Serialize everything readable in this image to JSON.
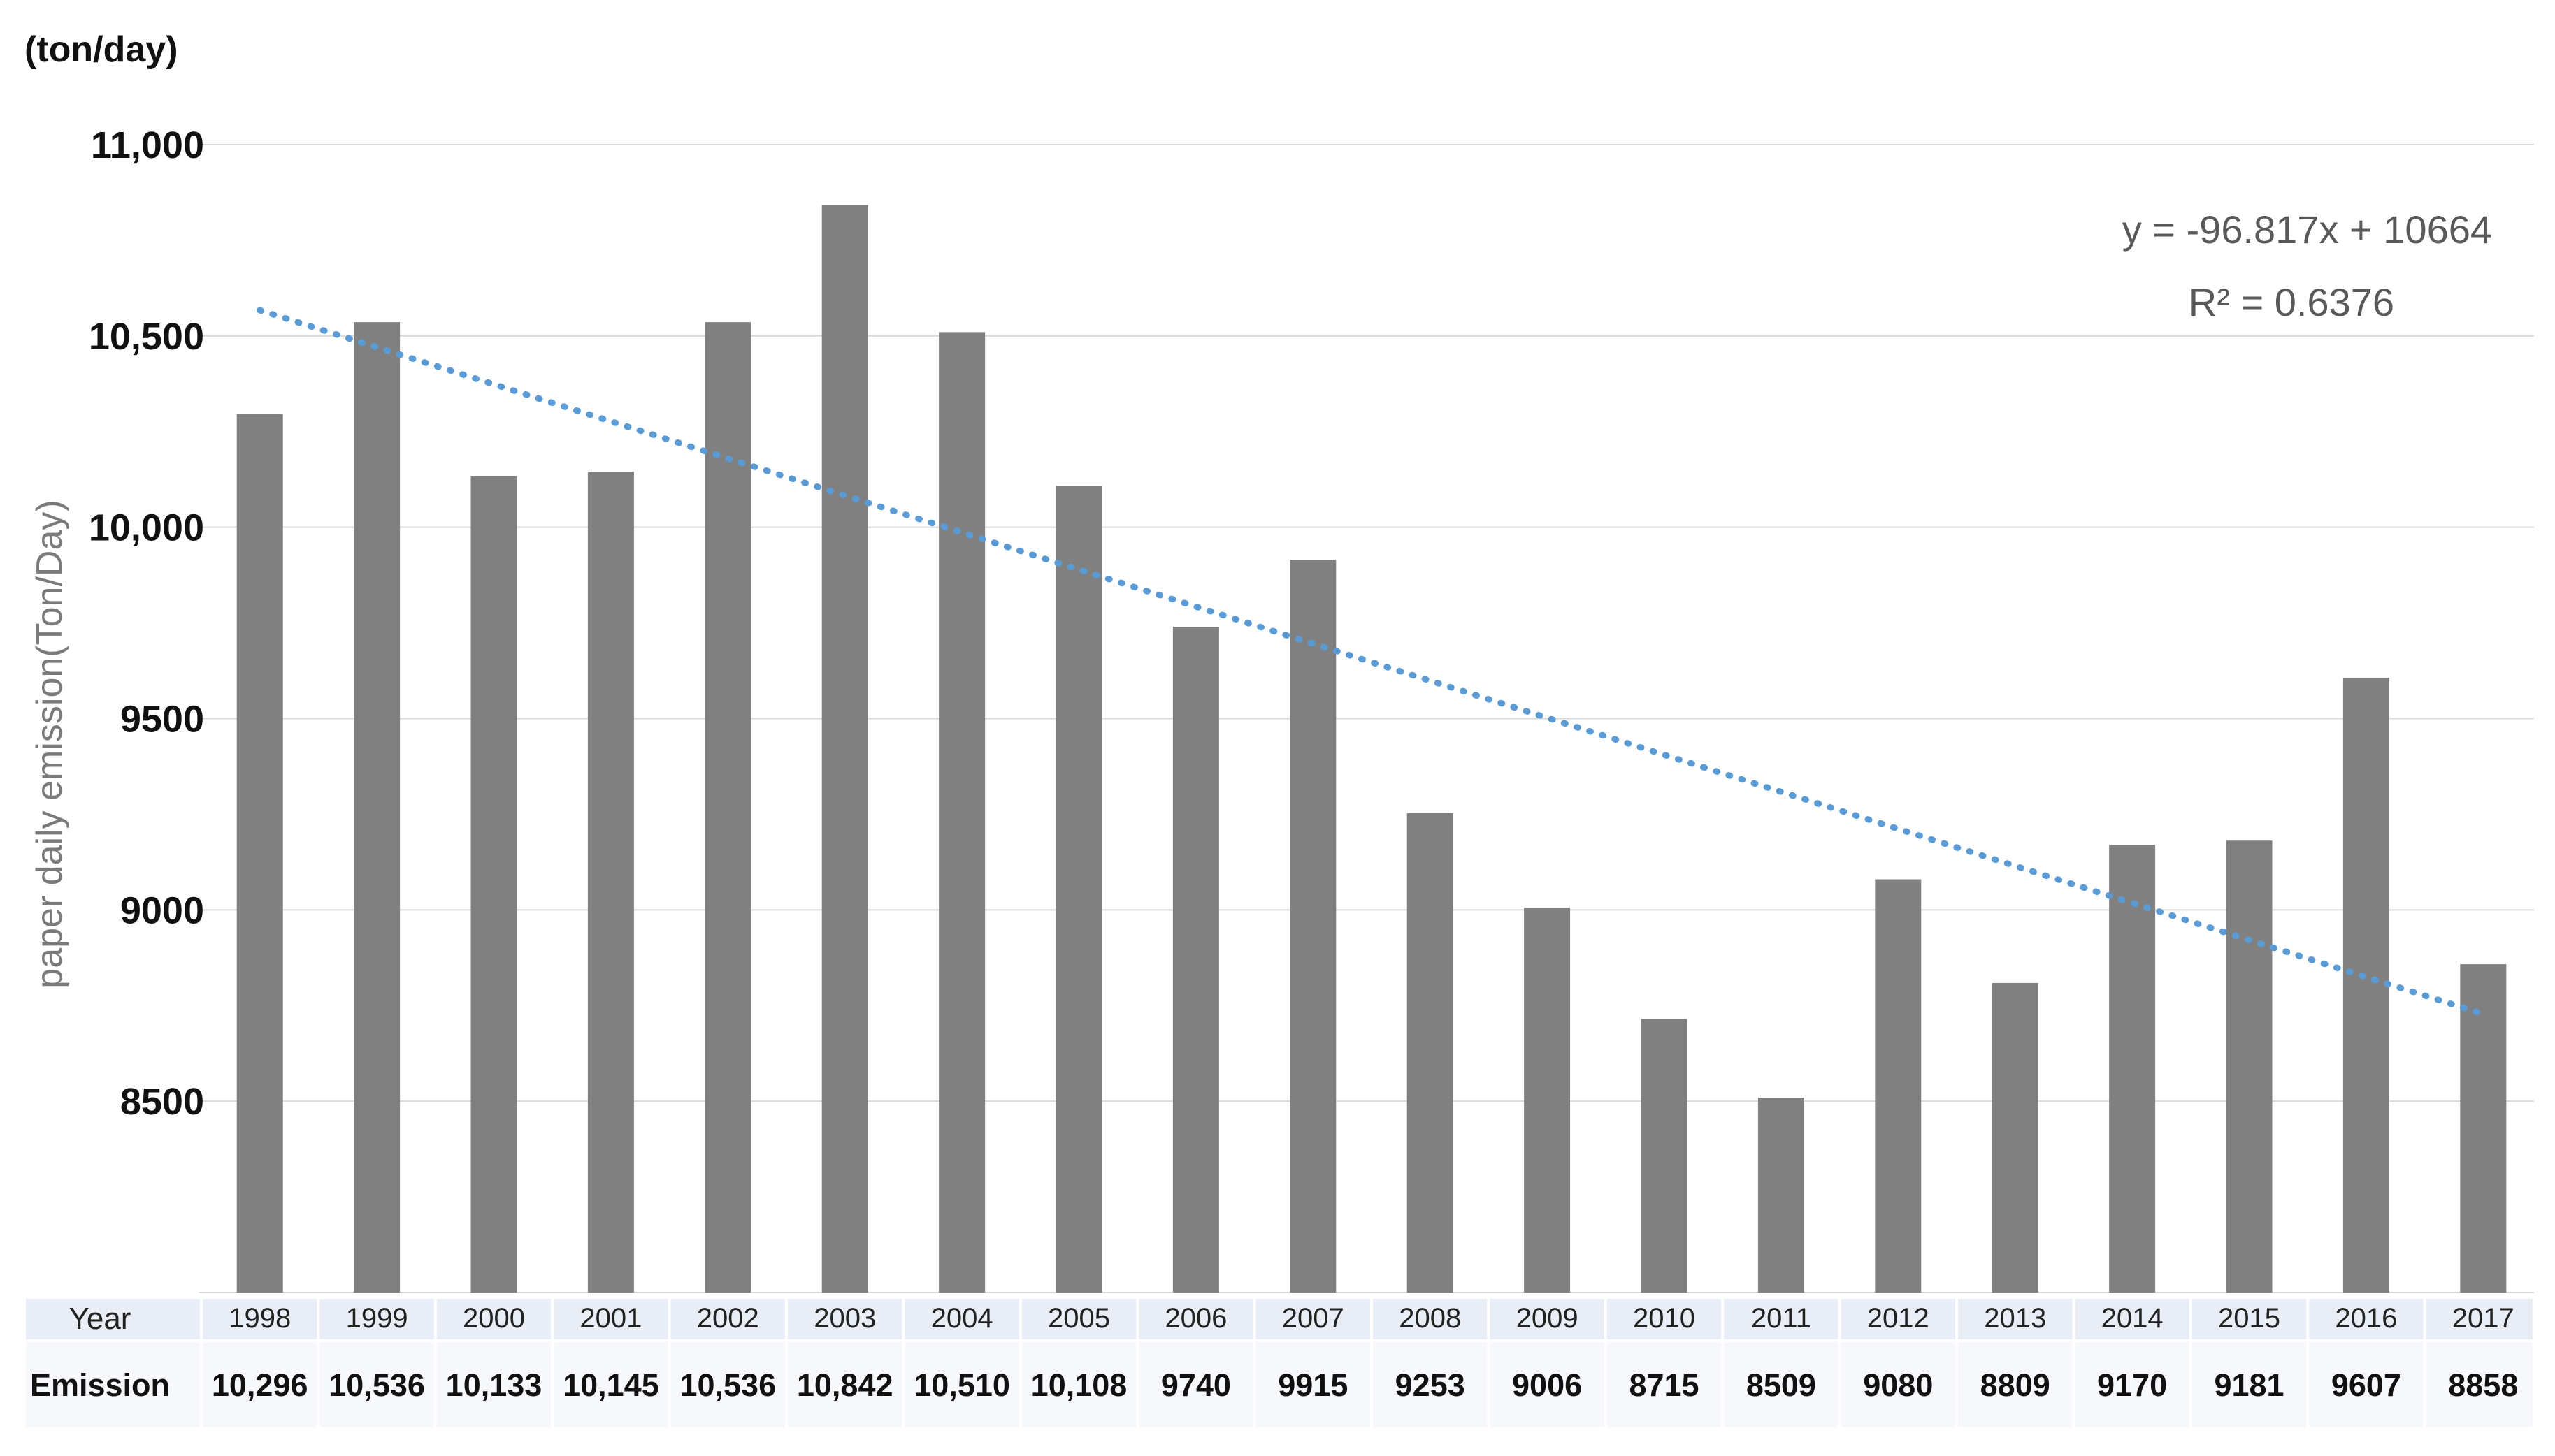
{
  "chart_data": {
    "type": "bar",
    "unit_label": "(ton/day)",
    "ylabel": "paper daily emission(Ton/Day)",
    "ylim": [
      8000,
      11000
    ],
    "yticks": [
      {
        "value": 11000,
        "label": "11,000"
      },
      {
        "value": 10500,
        "label": "10,500"
      },
      {
        "value": 10000,
        "label": "10,000"
      },
      {
        "value": 9500,
        "label": "9500"
      },
      {
        "value": 9000,
        "label": "9000"
      },
      {
        "value": 8500,
        "label": "8500"
      }
    ],
    "grid": true,
    "categories": [
      "1998",
      "1999",
      "2000",
      "2001",
      "2002",
      "2003",
      "2004",
      "2005",
      "2006",
      "2007",
      "2008",
      "2009",
      "2010",
      "2011",
      "2012",
      "2013",
      "2014",
      "2015",
      "2016",
      "2017"
    ],
    "values": [
      10296,
      10536,
      10133,
      10145,
      10536,
      10842,
      10510,
      10108,
      9740,
      9915,
      9253,
      9006,
      8715,
      8509,
      9080,
      8809,
      9170,
      9181,
      9607,
      8858
    ],
    "trendline": {
      "slope": -96.817,
      "intercept": 10664,
      "equation": "y = -96.817x + 10664",
      "r2": "R² = 0.6376",
      "color": "#5b9bd5"
    },
    "bar_color": "#808080",
    "table": {
      "row_label_year": "Year",
      "row_label_value": "Emission",
      "value_labels": [
        "10,296",
        "10,536",
        "10,133",
        "10,145",
        "10,536",
        "10,842",
        "10,510",
        "10,108",
        "9740",
        "9915",
        "9253",
        "9006",
        "8715",
        "8509",
        "9080",
        "8809",
        "9170",
        "9181",
        "9607",
        "8858"
      ]
    }
  }
}
